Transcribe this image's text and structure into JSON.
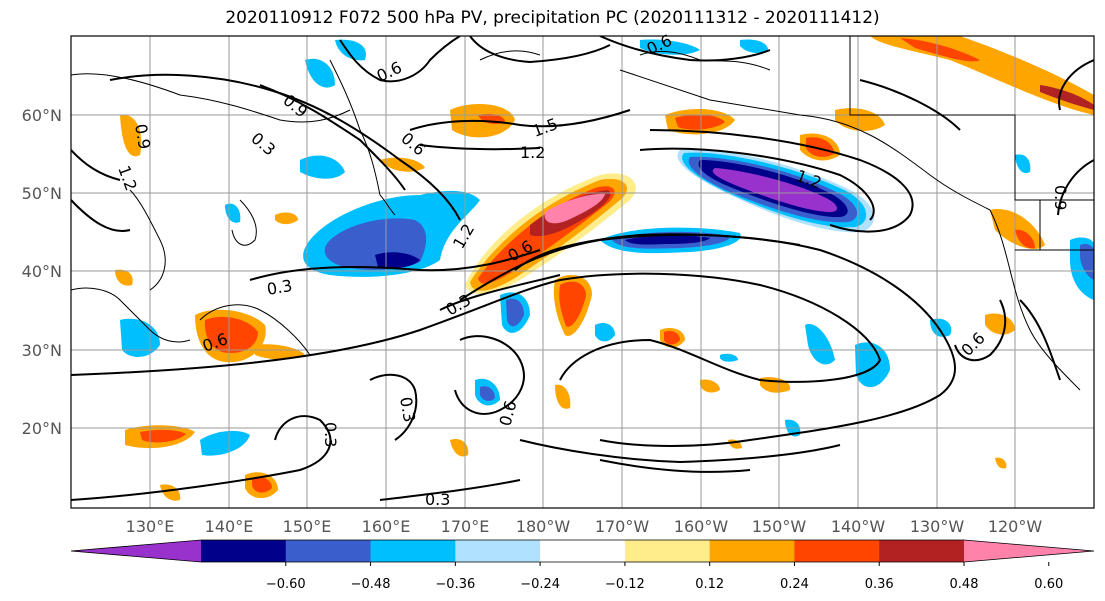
{
  "title": "2020110912 F072 500 hPa PV, precipitation PC (2020111312 - 2020111412)",
  "lat_labels": [
    "60°N",
    "50°N",
    "40°N",
    "30°N",
    "20°N"
  ],
  "lon_labels": [
    "130°E",
    "140°E",
    "150°E",
    "160°E",
    "170°E",
    "180°W",
    "170°W",
    "160°W",
    "150°W",
    "140°W",
    "130°W",
    "120°W"
  ],
  "contour_labels": [
    "0.6",
    "0.9",
    "0.3",
    "1.5",
    "1.2",
    "1.2",
    "0.6",
    "0.3",
    "0.3",
    "1.2",
    "0.6",
    "0.3",
    "0.6",
    "0.3",
    "0.6",
    "0.6",
    "0.3",
    "0.9",
    "0.6",
    "0.9",
    "1.2"
  ],
  "colorbar": {
    "colors": [
      "#9932CC",
      "#00008B",
      "#3A5FCD",
      "#00BFFF",
      "#B0E2FF",
      "#FFFFFF",
      "#FFEC8B",
      "#FFA500",
      "#FF4500",
      "#B22222",
      "#FF82AB"
    ],
    "ticks": [
      "−0.60",
      "−0.48",
      "−0.36",
      "−0.24",
      "−0.12",
      "0.12",
      "0.24",
      "0.36",
      "0.48",
      "0.60"
    ]
  }
}
